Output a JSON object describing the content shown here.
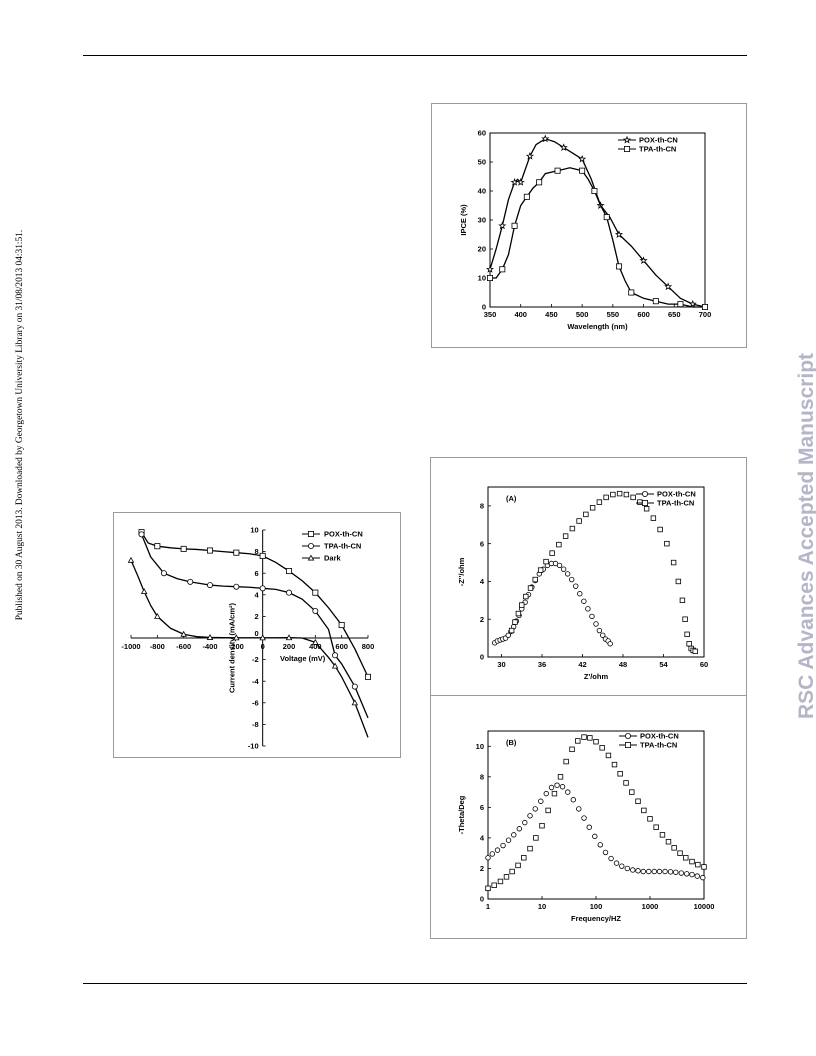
{
  "page": {
    "side_note": "Published on 30 August 2013. Downloaded by Georgetown University Library on 31/08/2013 04:31:51.",
    "watermark": "RSC Advances Accepted Manuscript"
  },
  "chart_data": [
    {
      "id": "ipce",
      "type": "line",
      "title": "",
      "xlabel": "Wavelength (nm)",
      "ylabel": "IPCE (%)",
      "xlim": [
        350,
        700
      ],
      "ylim": [
        0,
        60
      ],
      "xticks": [
        350,
        400,
        450,
        500,
        550,
        600,
        650,
        700
      ],
      "yticks": [
        0,
        10,
        20,
        30,
        40,
        50,
        60
      ],
      "legend_position": "top-right",
      "series": [
        {
          "name": "POX-th-CN",
          "marker": "star",
          "x": [
            350,
            360,
            370,
            380,
            390,
            395,
            400,
            405,
            415,
            425,
            440,
            455,
            470,
            485,
            500,
            515,
            530,
            545,
            560,
            580,
            600,
            620,
            640,
            660,
            680,
            700
          ],
          "y": [
            13,
            20,
            28,
            37,
            43,
            44,
            43,
            46,
            52,
            56,
            58,
            57,
            55,
            53,
            51,
            44,
            35,
            31,
            25,
            21,
            16,
            11,
            7,
            3,
            1,
            0
          ]
        },
        {
          "name": "TPA-th-CN",
          "marker": "square",
          "x": [
            350,
            360,
            370,
            380,
            390,
            400,
            410,
            420,
            430,
            440,
            460,
            480,
            500,
            510,
            520,
            530,
            540,
            550,
            560,
            570,
            580,
            600,
            620,
            640,
            660,
            680,
            700
          ],
          "y": [
            10,
            10,
            13,
            18,
            28,
            35,
            38,
            41,
            43,
            46,
            47,
            48,
            47,
            44,
            40,
            35,
            31,
            23,
            14,
            9,
            5,
            3,
            2,
            1,
            1,
            0,
            0
          ]
        }
      ]
    },
    {
      "id": "jv",
      "type": "line",
      "title": "",
      "xlabel": "Voltage (mV)",
      "ylabel": "Current density (mA/cm²)",
      "xlim": [
        -1000,
        800
      ],
      "ylim": [
        -10,
        10
      ],
      "xticks": [
        -1000,
        -800,
        -600,
        -400,
        -200,
        0,
        200,
        400,
        600,
        800
      ],
      "yticks": [
        -10,
        -8,
        -6,
        -4,
        -2,
        0,
        2,
        4,
        6,
        8,
        10
      ],
      "legend_position": "top-right",
      "series": [
        {
          "name": "POX-th-CN",
          "marker": "square",
          "x": [
            -920,
            -870,
            -800,
            -700,
            -600,
            -500,
            -400,
            -300,
            -200,
            -100,
            0,
            100,
            200,
            300,
            400,
            500,
            600,
            700,
            800
          ],
          "y": [
            9.8,
            8.8,
            8.5,
            8.35,
            8.25,
            8.2,
            8.1,
            8.0,
            7.9,
            7.8,
            7.6,
            7.0,
            6.2,
            5.3,
            4.2,
            2.8,
            1.2,
            -1.0,
            -3.6
          ]
        },
        {
          "name": "TPA-th-CN",
          "marker": "circle",
          "x": [
            -920,
            -850,
            -750,
            -650,
            -550,
            -450,
            -400,
            -300,
            -200,
            -100,
            0,
            100,
            200,
            300,
            400,
            500,
            550,
            600,
            700,
            800
          ],
          "y": [
            9.6,
            7.5,
            6.0,
            5.5,
            5.2,
            5.0,
            4.9,
            4.8,
            4.75,
            4.7,
            4.6,
            4.5,
            4.2,
            3.6,
            2.5,
            0.8,
            -1.6,
            -2.4,
            -4.5,
            -7.4
          ]
        },
        {
          "name": "Dark",
          "marker": "triangle",
          "x": [
            -1000,
            -950,
            -900,
            -850,
            -800,
            -700,
            -600,
            -500,
            -400,
            -300,
            -200,
            -100,
            0,
            100,
            200,
            300,
            400,
            500,
            550,
            600,
            700,
            800
          ],
          "y": [
            7.2,
            5.8,
            4.3,
            3.0,
            2.0,
            0.9,
            0.35,
            0.12,
            0.05,
            0.03,
            0.02,
            0.02,
            0.02,
            0.02,
            0.03,
            0.0,
            -0.4,
            -1.8,
            -2.6,
            -3.6,
            -6.0,
            -9.2
          ]
        }
      ]
    },
    {
      "id": "nyquist",
      "type": "scatter",
      "title": "(A)",
      "xlabel": "Z'/ohm",
      "ylabel": "-Z''/ohm",
      "xlim": [
        28,
        60
      ],
      "ylim": [
        0,
        9
      ],
      "xticks": [
        30,
        36,
        42,
        48,
        54,
        60
      ],
      "yticks": [
        0,
        2,
        4,
        6,
        8
      ],
      "legend_position": "top-right",
      "series": [
        {
          "name": "POX-th-CN",
          "marker": "circle",
          "x": [
            29.0,
            29.4,
            29.8,
            30.2,
            30.6,
            31.0,
            31.4,
            31.8,
            32.2,
            32.6,
            33.0,
            33.5,
            34.0,
            34.5,
            35.0,
            35.6,
            36.2,
            36.8,
            37.4,
            38.0,
            38.6,
            39.2,
            39.8,
            40.4,
            41.0,
            41.6,
            42.2,
            42.8,
            43.4,
            44.0,
            44.5,
            45.0,
            45.4,
            45.8,
            46.1
          ],
          "y": [
            0.75,
            0.85,
            0.9,
            0.95,
            1.0,
            1.15,
            1.35,
            1.6,
            1.9,
            2.2,
            2.55,
            2.9,
            3.3,
            3.7,
            4.05,
            4.4,
            4.65,
            4.85,
            4.95,
            4.95,
            4.85,
            4.65,
            4.4,
            4.1,
            3.75,
            3.35,
            2.95,
            2.55,
            2.15,
            1.75,
            1.4,
            1.15,
            0.95,
            0.85,
            0.7
          ]
        },
        {
          "name": "TPA-th-CN",
          "marker": "square",
          "x": [
            31.5,
            32.0,
            32.5,
            33.0,
            33.6,
            34.3,
            35.0,
            35.8,
            36.6,
            37.5,
            38.5,
            39.5,
            40.5,
            41.5,
            42.5,
            43.5,
            44.5,
            45.5,
            46.5,
            47.5,
            48.5,
            49.5,
            50.5,
            51.5,
            52.5,
            53.5,
            54.5,
            55.5,
            56.2,
            56.8,
            57.2,
            57.5,
            57.8,
            58.1,
            58.4,
            58.7
          ],
          "y": [
            1.4,
            1.85,
            2.3,
            2.75,
            3.2,
            3.65,
            4.1,
            4.6,
            5.05,
            5.5,
            5.95,
            6.4,
            6.8,
            7.2,
            7.55,
            7.9,
            8.2,
            8.45,
            8.6,
            8.65,
            8.6,
            8.45,
            8.2,
            7.85,
            7.35,
            6.75,
            6.0,
            5.0,
            4.0,
            3.0,
            2.0,
            1.2,
            0.7,
            0.45,
            0.35,
            0.3
          ]
        }
      ]
    },
    {
      "id": "bode",
      "type": "scatter",
      "title": "(B)",
      "xlabel": "Frequency/HZ",
      "ylabel": "-Theta/Deg",
      "xscale": "log",
      "xlim": [
        1,
        10000
      ],
      "ylim": [
        0,
        11
      ],
      "xticks": [
        1,
        10,
        100,
        1000,
        10000
      ],
      "yticks": [
        0,
        2,
        4,
        6,
        8,
        10
      ],
      "legend_position": "top-right",
      "series": [
        {
          "name": "POX-th-CN",
          "marker": "circle",
          "x": [
            1.0,
            1.2,
            1.5,
            1.9,
            2.4,
            3.0,
            3.8,
            4.8,
            6.0,
            7.5,
            9.5,
            12,
            15,
            19,
            24,
            30,
            38,
            48,
            60,
            75,
            95,
            120,
            150,
            190,
            240,
            300,
            380,
            480,
            600,
            750,
            950,
            1200,
            1500,
            1900,
            2400,
            3000,
            3800,
            4800,
            6000,
            7500,
            9500
          ],
          "y": [
            2.7,
            2.95,
            3.2,
            3.5,
            3.85,
            4.2,
            4.6,
            5.0,
            5.45,
            5.9,
            6.4,
            6.9,
            7.3,
            7.45,
            7.35,
            7.0,
            6.5,
            5.9,
            5.3,
            4.7,
            4.1,
            3.55,
            3.05,
            2.65,
            2.35,
            2.15,
            2.0,
            1.9,
            1.85,
            1.8,
            1.8,
            1.8,
            1.8,
            1.8,
            1.78,
            1.75,
            1.7,
            1.65,
            1.6,
            1.5,
            1.4
          ]
        },
        {
          "name": "TPA-th-CN",
          "marker": "square",
          "x": [
            1.0,
            1.3,
            1.7,
            2.2,
            2.8,
            3.6,
            4.6,
            6.0,
            7.7,
            10,
            13,
            17,
            22,
            28,
            36,
            46,
            60,
            77,
            100,
            130,
            170,
            220,
            280,
            360,
            460,
            600,
            770,
            1000,
            1300,
            1700,
            2200,
            2800,
            3600,
            4600,
            6000,
            7700,
            10000
          ],
          "y": [
            0.7,
            0.9,
            1.15,
            1.45,
            1.8,
            2.2,
            2.7,
            3.3,
            4.0,
            4.8,
            5.8,
            6.9,
            8.0,
            9.0,
            9.8,
            10.35,
            10.6,
            10.55,
            10.3,
            9.9,
            9.4,
            8.8,
            8.2,
            7.6,
            7.0,
            6.4,
            5.8,
            5.25,
            4.7,
            4.2,
            3.75,
            3.35,
            3.0,
            2.7,
            2.45,
            2.25,
            2.1
          ]
        }
      ]
    }
  ]
}
